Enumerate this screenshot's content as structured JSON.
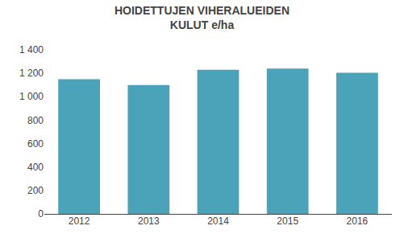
{
  "chart_data": {
    "type": "bar",
    "title": "HOIDETTUJEN VIHERALUEIDEN\nKULUT e/ha",
    "categories": [
      "2012",
      "2013",
      "2014",
      "2015",
      "2016"
    ],
    "values": [
      1150,
      1100,
      1230,
      1240,
      1205
    ],
    "color": "#4aa3b8",
    "ylim": [
      0,
      1400
    ],
    "yticks": [
      0,
      200,
      400,
      600,
      800,
      {
        "value": 1000,
        "label": "1 000"
      },
      {
        "value": 1200,
        "label": "1 200"
      },
      {
        "value": 1400,
        "label": "1 400"
      }
    ],
    "grid": false
  }
}
